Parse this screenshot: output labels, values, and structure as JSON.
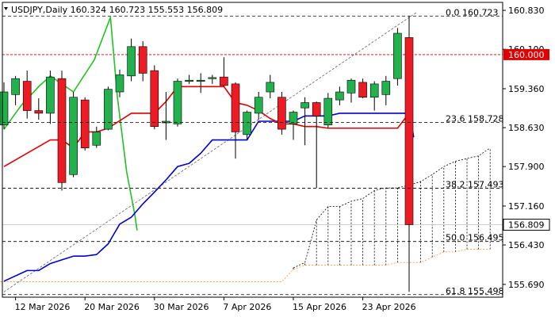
{
  "chart_data": {
    "type": "candlestick",
    "symbol": "USDJPY",
    "timeframe": "Daily",
    "header_values": [
      "160.324",
      "160.723",
      "155.553",
      "156.809"
    ],
    "x_tick_labels": [
      {
        "label": "12 Mar 2026",
        "index": 1
      },
      {
        "label": "20 Mar 2026",
        "index": 7
      },
      {
        "label": "30 Mar 2026",
        "index": 13
      },
      {
        "label": "7 Apr 2026",
        "index": 19
      },
      {
        "label": "15 Apr 2026",
        "index": 25
      },
      {
        "label": "23 Apr 2026",
        "index": 31
      }
    ],
    "y_tick_labels": [
      "160.830",
      "160.100",
      "159.360",
      "158.630",
      "157.900",
      "157.160",
      "156.430",
      "155.690"
    ],
    "ylim": [
      155.45,
      160.95
    ],
    "candles": [
      {
        "o": 158.68,
        "h": 159.48,
        "l": 158.6,
        "c": 159.3
      },
      {
        "o": 159.25,
        "h": 159.6,
        "l": 159.05,
        "c": 159.55
      },
      {
        "o": 159.5,
        "h": 159.7,
        "l": 158.8,
        "c": 158.95
      },
      {
        "o": 158.95,
        "h": 159.18,
        "l": 158.78,
        "c": 158.9
      },
      {
        "o": 158.9,
        "h": 159.7,
        "l": 158.7,
        "c": 159.58
      },
      {
        "o": 159.55,
        "h": 159.7,
        "l": 157.45,
        "c": 157.6
      },
      {
        "o": 157.75,
        "h": 159.3,
        "l": 157.7,
        "c": 159.2
      },
      {
        "o": 159.15,
        "h": 159.2,
        "l": 158.2,
        "c": 158.25
      },
      {
        "o": 158.3,
        "h": 158.65,
        "l": 158.25,
        "c": 158.55
      },
      {
        "o": 158.6,
        "h": 159.4,
        "l": 158.58,
        "c": 159.35
      },
      {
        "o": 159.3,
        "h": 159.72,
        "l": 159.2,
        "c": 159.62
      },
      {
        "o": 159.6,
        "h": 160.3,
        "l": 159.5,
        "c": 160.15
      },
      {
        "o": 160.15,
        "h": 160.25,
        "l": 159.5,
        "c": 159.65
      },
      {
        "o": 159.7,
        "h": 159.8,
        "l": 158.6,
        "c": 158.65
      },
      {
        "o": 158.72,
        "h": 159.3,
        "l": 158.4,
        "c": 158.75
      },
      {
        "o": 158.7,
        "h": 159.55,
        "l": 158.65,
        "c": 159.5
      },
      {
        "o": 159.5,
        "h": 159.62,
        "l": 159.45,
        "c": 159.52
      },
      {
        "o": 159.5,
        "h": 159.65,
        "l": 159.28,
        "c": 159.52
      },
      {
        "o": 159.55,
        "h": 159.62,
        "l": 159.45,
        "c": 159.57
      },
      {
        "o": 159.58,
        "h": 159.95,
        "l": 159.4,
        "c": 159.42
      },
      {
        "o": 159.45,
        "h": 159.48,
        "l": 158.05,
        "c": 158.55
      },
      {
        "o": 158.5,
        "h": 158.95,
        "l": 158.4,
        "c": 158.92
      },
      {
        "o": 158.9,
        "h": 159.3,
        "l": 158.78,
        "c": 159.2
      },
      {
        "o": 159.3,
        "h": 159.62,
        "l": 159.18,
        "c": 159.48
      },
      {
        "o": 159.2,
        "h": 159.3,
        "l": 158.5,
        "c": 158.6
      },
      {
        "o": 158.7,
        "h": 158.95,
        "l": 158.4,
        "c": 158.92
      },
      {
        "o": 159.0,
        "h": 159.2,
        "l": 158.3,
        "c": 159.1
      },
      {
        "o": 159.1,
        "h": 159.12,
        "l": 157.5,
        "c": 158.85
      },
      {
        "o": 158.68,
        "h": 159.28,
        "l": 158.62,
        "c": 159.18
      },
      {
        "o": 159.15,
        "h": 159.4,
        "l": 159.05,
        "c": 159.3
      },
      {
        "o": 159.28,
        "h": 159.55,
        "l": 159.1,
        "c": 159.52
      },
      {
        "o": 159.48,
        "h": 159.55,
        "l": 159.18,
        "c": 159.2
      },
      {
        "o": 159.2,
        "h": 159.5,
        "l": 158.95,
        "c": 159.45
      },
      {
        "o": 159.25,
        "h": 159.6,
        "l": 159.05,
        "c": 159.5
      },
      {
        "o": 159.55,
        "h": 160.5,
        "l": 159.42,
        "c": 160.4
      },
      {
        "o": 160.32,
        "h": 160.72,
        "l": 155.55,
        "c": 156.81
      }
    ],
    "tenkan": [
      [
        0,
        157.9
      ],
      [
        4,
        158.4
      ],
      [
        5,
        158.4
      ],
      [
        6,
        158.25
      ],
      [
        7,
        158.55
      ],
      [
        8,
        158.55
      ],
      [
        9,
        158.62
      ],
      [
        11,
        158.9
      ],
      [
        12,
        158.9
      ],
      [
        13,
        158.9
      ],
      [
        14,
        159.12
      ],
      [
        15,
        159.4
      ],
      [
        16,
        159.4
      ],
      [
        17,
        159.4
      ],
      [
        18,
        159.4
      ],
      [
        19,
        159.4
      ],
      [
        20,
        159.1
      ],
      [
        21,
        159.05
      ],
      [
        22,
        158.95
      ],
      [
        23,
        158.8
      ],
      [
        24,
        158.7
      ],
      [
        25,
        158.7
      ],
      [
        26,
        158.65
      ],
      [
        27,
        158.65
      ],
      [
        28,
        158.62
      ],
      [
        32,
        158.62
      ],
      [
        33,
        158.62
      ],
      [
        34,
        158.62
      ],
      [
        35,
        158.9
      ]
    ],
    "kijun": [
      [
        0,
        155.75
      ],
      [
        2,
        155.95
      ],
      [
        3,
        155.95
      ],
      [
        4,
        156.08
      ],
      [
        5,
        156.15
      ],
      [
        6,
        156.22
      ],
      [
        7,
        156.22
      ],
      [
        8,
        156.25
      ],
      [
        9,
        156.45
      ],
      [
        10,
        156.82
      ],
      [
        11,
        156.95
      ],
      [
        12,
        157.2
      ],
      [
        13,
        157.42
      ],
      [
        14,
        157.65
      ],
      [
        15,
        157.9
      ],
      [
        16,
        157.96
      ],
      [
        17,
        158.15
      ],
      [
        18,
        158.4
      ],
      [
        19,
        158.4
      ],
      [
        20,
        158.4
      ],
      [
        21,
        158.4
      ],
      [
        22,
        158.75
      ],
      [
        23,
        158.75
      ],
      [
        25,
        158.75
      ],
      [
        26,
        158.85
      ],
      [
        27,
        158.85
      ],
      [
        28,
        158.85
      ],
      [
        29,
        158.9
      ],
      [
        30,
        158.9
      ],
      [
        33,
        158.9
      ],
      [
        34,
        158.9
      ],
      [
        35,
        158.9
      ],
      [
        35.4,
        158.45
      ]
    ],
    "chikou": [
      [
        0,
        158.6
      ],
      [
        1.5,
        159.05
      ],
      [
        3,
        159.4
      ],
      [
        4,
        159.6
      ],
      [
        6,
        159.3
      ],
      [
        7.8,
        159.9
      ],
      [
        9.2,
        160.7
      ],
      [
        9.8,
        159.2
      ],
      [
        10.6,
        157.8
      ],
      [
        11.3,
        157.0
      ],
      [
        11.5,
        156.7
      ]
    ],
    "ichimoku_cloud": [
      [
        25,
        155.97,
        156.0
      ],
      [
        26,
        156.05,
        156.1
      ],
      [
        27,
        156.05,
        156.9
      ],
      [
        28,
        156.05,
        157.15
      ],
      [
        29,
        156.05,
        157.15
      ],
      [
        30,
        156.05,
        157.25
      ],
      [
        31,
        156.05,
        157.3
      ],
      [
        32,
        156.05,
        157.45
      ],
      [
        33,
        156.05,
        157.5
      ],
      [
        34,
        156.1,
        157.5
      ],
      [
        35,
        156.1,
        157.55
      ],
      [
        36,
        156.1,
        157.62
      ],
      [
        37,
        156.2,
        157.75
      ],
      [
        38,
        156.3,
        157.9
      ],
      [
        39,
        156.3,
        158.0
      ],
      [
        40,
        156.35,
        158.05
      ],
      [
        41,
        156.35,
        158.1
      ],
      [
        42,
        156.35,
        158.25
      ]
    ],
    "trendline": {
      "from": [
        0,
        155.55
      ],
      "to": [
        35.7,
        160.8
      ]
    },
    "fib_levels": [
      {
        "label": "0.0 160.723",
        "value": 160.723
      },
      {
        "label": "23.6 158.728",
        "value": 158.728
      },
      {
        "label": "38.2 157.493",
        "value": 157.493
      },
      {
        "label": "50.0 156.495",
        "value": 156.495
      },
      {
        "label": "61.8 155.498",
        "value": 155.498
      }
    ],
    "resistance": {
      "value": 160.0,
      "label": "160.000"
    },
    "last_price": {
      "value": 156.809,
      "label": "156.809"
    },
    "colors": {
      "bull": "#22b14c",
      "bear": "#ed1c24",
      "tenkan": "#e00000",
      "kijun": "#0000d0",
      "chikou": "#22c122",
      "cloud": "#000000",
      "cloud_lower": "#f0a050",
      "resistance": "#c00000",
      "price_box": "#e00000"
    }
  }
}
